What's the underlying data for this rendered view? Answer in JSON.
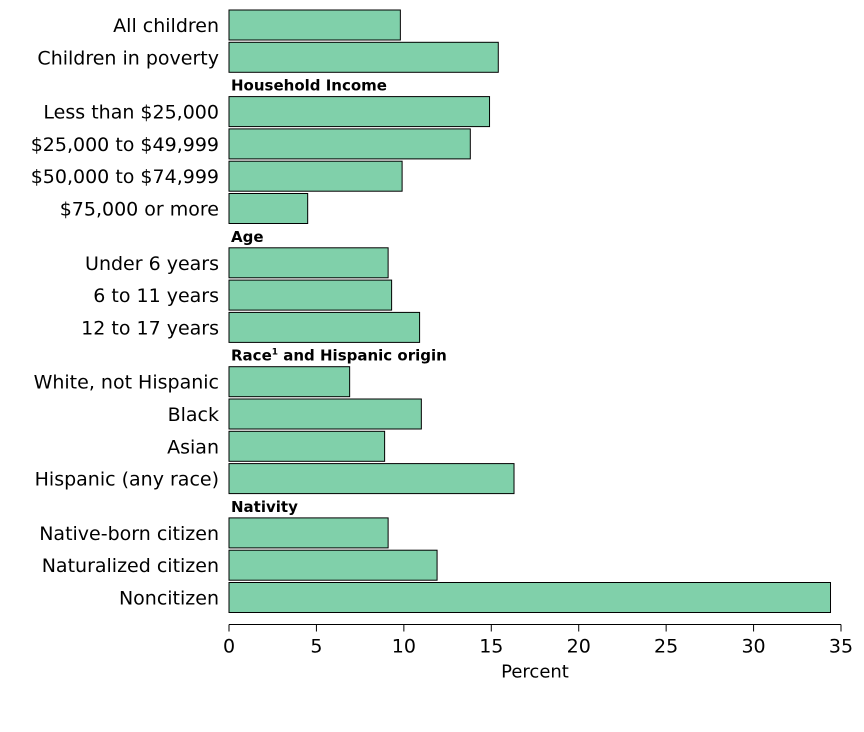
{
  "chart_data": {
    "type": "bar",
    "orientation": "horizontal",
    "title": "",
    "xlabel": "Percent",
    "ylabel": "",
    "xlim": [
      0,
      35
    ],
    "xticks": [
      "0",
      "5",
      "10",
      "15",
      "20",
      "25",
      "30",
      "35"
    ],
    "grid": false,
    "bar_color": "#80d0aa",
    "bar_edge_color": "#000000",
    "groups": [
      {
        "label": "",
        "superscript": "",
        "label_suffix": "",
        "items": [
          {
            "category": "All children",
            "value": 9.8
          },
          {
            "category": "Children in poverty",
            "value": 15.4
          }
        ]
      },
      {
        "label": "Household Income",
        "superscript": "",
        "label_suffix": "",
        "items": [
          {
            "category": "Less than $25,000",
            "value": 14.9
          },
          {
            "category": "$25,000 to $49,999",
            "value": 13.8
          },
          {
            "category": "$50,000 to $74,999",
            "value": 9.9
          },
          {
            "category": "$75,000 or more",
            "value": 4.5
          }
        ]
      },
      {
        "label": "Age",
        "superscript": "",
        "label_suffix": "",
        "items": [
          {
            "category": "Under 6 years",
            "value": 9.1
          },
          {
            "category": "6 to 11 years",
            "value": 9.3
          },
          {
            "category": "12 to 17 years",
            "value": 10.9
          }
        ]
      },
      {
        "label": "Race",
        "superscript": "1",
        "label_suffix": " and Hispanic origin",
        "items": [
          {
            "category": "White, not Hispanic",
            "value": 6.9
          },
          {
            "category": "Black",
            "value": 11.0
          },
          {
            "category": "Asian",
            "value": 8.9
          },
          {
            "category": "Hispanic (any race)",
            "value": 16.3
          }
        ]
      },
      {
        "label": "Nativity",
        "superscript": "",
        "label_suffix": "",
        "items": [
          {
            "category": "Native-born citizen",
            "value": 9.1
          },
          {
            "category": "Naturalized citizen",
            "value": 11.9
          },
          {
            "category": "Noncitizen",
            "value": 34.4
          }
        ]
      }
    ]
  }
}
